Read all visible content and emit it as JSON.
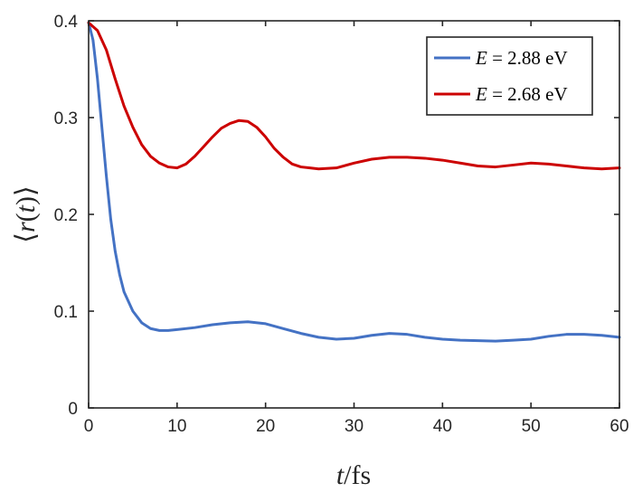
{
  "chart_data": {
    "type": "line",
    "xlabel": "t/fs",
    "ylabel": "⟨r(t)⟩",
    "xlim": [
      0,
      60
    ],
    "ylim": [
      0,
      0.4
    ],
    "xticks": [
      0,
      10,
      20,
      30,
      40,
      50,
      60
    ],
    "xtick_labels": [
      "0",
      "10",
      "20",
      "30",
      "40",
      "50",
      "60"
    ],
    "yticks": [
      0,
      0.1,
      0.2,
      0.3,
      0.4
    ],
    "ytick_labels": [
      "0",
      "0.1",
      "0.2",
      "0.3",
      "0.4"
    ],
    "grid": false,
    "legend_position": "top-right",
    "series": [
      {
        "name": "E = 2.88 eV",
        "color": "#4472c4",
        "x": [
          0,
          0.5,
          1,
          1.5,
          2,
          2.5,
          3,
          3.5,
          4,
          5,
          6,
          7,
          8,
          9,
          10,
          12,
          14,
          16,
          18,
          20,
          22,
          24,
          26,
          28,
          30,
          32,
          34,
          36,
          38,
          40,
          42,
          44,
          46,
          48,
          50,
          52,
          54,
          56,
          58,
          60
        ],
        "y": [
          0.398,
          0.38,
          0.34,
          0.29,
          0.24,
          0.195,
          0.162,
          0.138,
          0.12,
          0.1,
          0.088,
          0.082,
          0.08,
          0.08,
          0.081,
          0.083,
          0.086,
          0.088,
          0.089,
          0.087,
          0.082,
          0.077,
          0.073,
          0.071,
          0.072,
          0.075,
          0.077,
          0.076,
          0.073,
          0.071,
          0.07,
          0.0695,
          0.069,
          0.07,
          0.071,
          0.074,
          0.076,
          0.076,
          0.075,
          0.073
        ]
      },
      {
        "name": "E = 2.68 eV",
        "color": "#cc0000",
        "x": [
          0,
          1,
          2,
          3,
          4,
          5,
          6,
          7,
          8,
          9,
          10,
          11,
          12,
          13,
          14,
          15,
          16,
          17,
          18,
          19,
          20,
          21,
          22,
          23,
          24,
          25,
          26,
          28,
          30,
          32,
          34,
          36,
          38,
          40,
          42,
          44,
          46,
          48,
          50,
          52,
          54,
          56,
          58,
          60
        ],
        "y": [
          0.398,
          0.39,
          0.37,
          0.34,
          0.312,
          0.29,
          0.272,
          0.26,
          0.253,
          0.249,
          0.248,
          0.252,
          0.26,
          0.27,
          0.28,
          0.289,
          0.294,
          0.297,
          0.296,
          0.29,
          0.28,
          0.268,
          0.259,
          0.252,
          0.249,
          0.248,
          0.247,
          0.248,
          0.253,
          0.257,
          0.259,
          0.259,
          0.258,
          0.256,
          0.253,
          0.25,
          0.249,
          0.251,
          0.253,
          0.252,
          0.25,
          0.248,
          0.247,
          0.248
        ]
      }
    ]
  }
}
